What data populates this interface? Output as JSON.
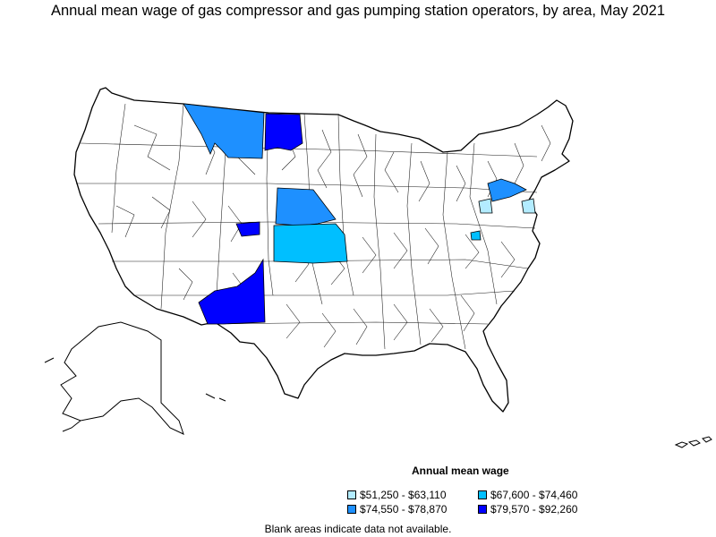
{
  "title": "Annual mean wage of gas compressor and gas pumping station operators, by area, May 2021",
  "legend": {
    "title": "Annual mean wage",
    "items": [
      {
        "label": "$51,250 - $63,110",
        "color": "#b3ecff"
      },
      {
        "label": "$67,600 - $74,460",
        "color": "#00bfff"
      },
      {
        "label": "$74,550 - $78,870",
        "color": "#1e90ff"
      },
      {
        "label": "$79,570 - $92,260",
        "color": "#0000ff"
      }
    ]
  },
  "note": "Blank areas indicate data not available.",
  "colors": {
    "land": "#ffffff",
    "border": "#000000"
  }
}
